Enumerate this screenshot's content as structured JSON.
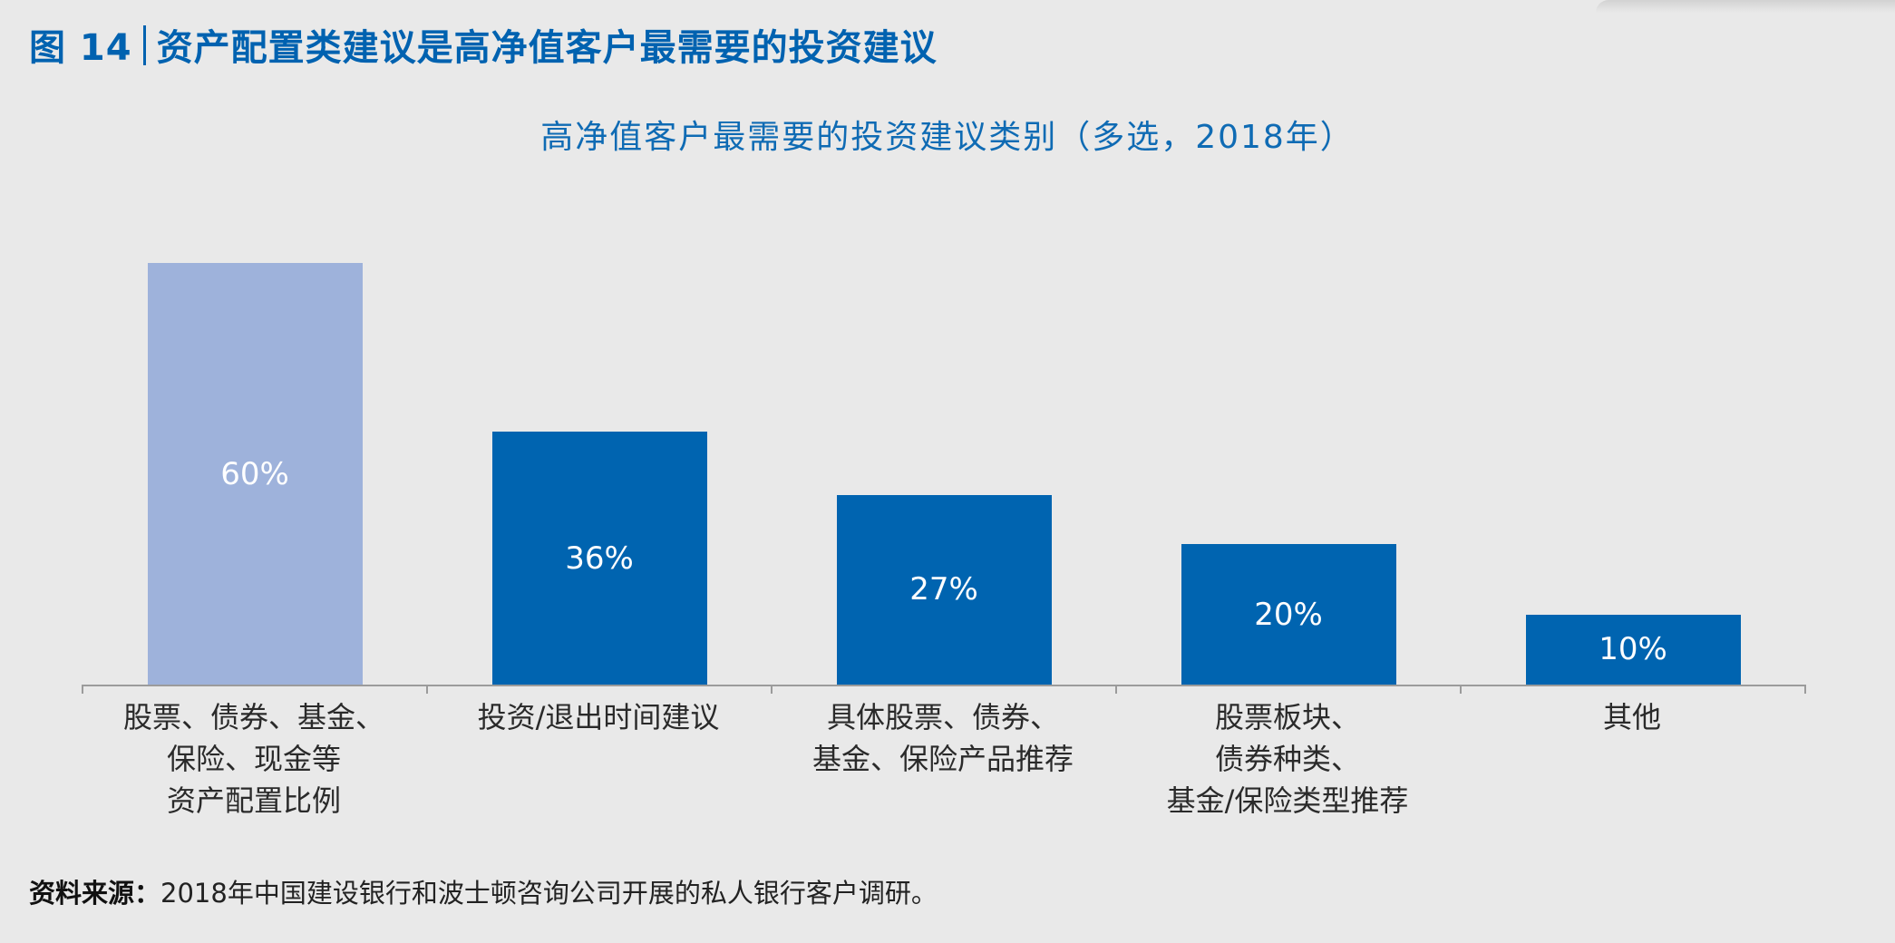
{
  "figure": {
    "number_label": "图 14",
    "title": "资产配置类建议是高净值客户最需要的投资建议"
  },
  "chart_title": "高净值客户最需要的投资建议类别（多选，2018年）",
  "source": {
    "label": "资料来源：",
    "text": "2018年中国建设银行和波士顿咨询公司开展的私人银行客户调研。"
  },
  "colors": {
    "highlight_bar": "#9eb2db",
    "bar": "#0064b0",
    "title": "#0062b0",
    "background": "#e9e9e9",
    "axis": "#9b9b9b"
  },
  "chart_data": {
    "type": "bar",
    "title": "高净值客户最需要的投资建议类别（多选，2018年）",
    "xlabel": "",
    "ylabel": "",
    "ylim": [
      0,
      60
    ],
    "grid": false,
    "legend": null,
    "categories": [
      "股票、债券、基金、保险、现金等资产配置比例",
      "投资/退出时间建议",
      "具体股票、债券、基金、保险产品推荐",
      "股票板块、债券种类、基金/保险类型推荐",
      "其他"
    ],
    "category_display": [
      "股票、债券、基金、\n保险、现金等\n资产配置比例",
      "投资/退出时间建议",
      "具体股票、债券、\n基金、保险产品推荐",
      "股票板块、\n债券种类、\n基金/保险类型推荐",
      "其他"
    ],
    "values": [
      60,
      36,
      27,
      20,
      10
    ],
    "value_labels": [
      "60%",
      "36%",
      "27%",
      "20%",
      "10%"
    ],
    "unit": "%"
  }
}
